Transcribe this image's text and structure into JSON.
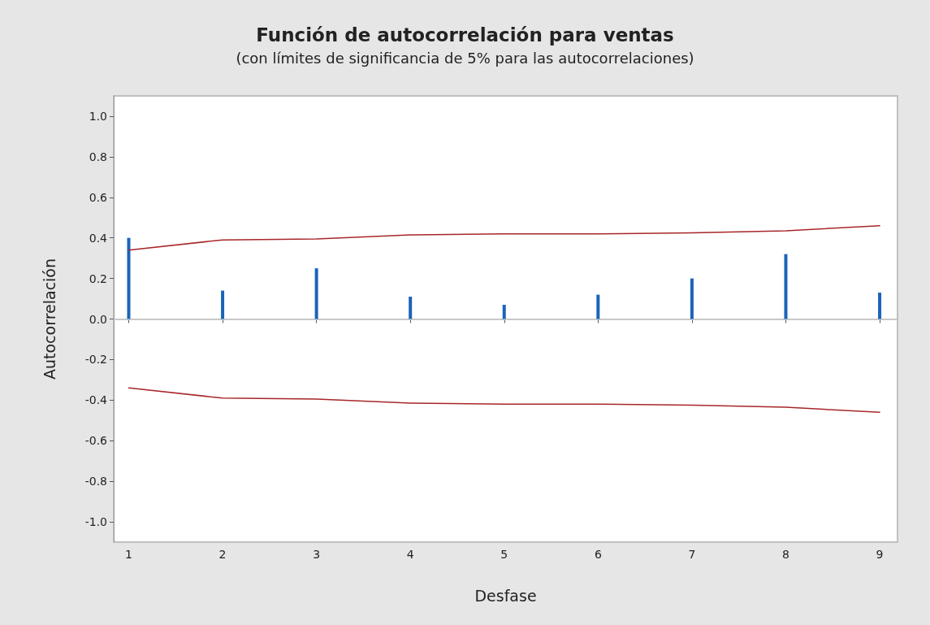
{
  "chart_data": {
    "type": "bar",
    "title": "Función de autocorrelación para ventas",
    "subtitle": "(con límites de significancia de 5% para las autocorrelaciones)",
    "xlabel": "Desfase",
    "ylabel": "Autocorrelación",
    "x": [
      1,
      2,
      3,
      4,
      5,
      6,
      7,
      8,
      9
    ],
    "series": [
      {
        "color": "#1b64b8",
        "values": [
          0.4,
          0.14,
          0.25,
          0.11,
          0.07,
          0.12,
          0.2,
          0.32,
          0.13
        ]
      },
      {
        "type": "line",
        "color": "#a8272a",
        "values": [
          0.34,
          0.39,
          0.395,
          0.415,
          0.42,
          0.42,
          0.425,
          0.435,
          0.46
        ]
      },
      {
        "type": "line",
        "color": "#a8272a",
        "values": [
          -0.34,
          -0.39,
          -0.395,
          -0.415,
          -0.42,
          -0.42,
          -0.425,
          -0.435,
          -0.46
        ]
      }
    ],
    "xlim": [
      0.84,
      9.19
    ],
    "xticks": [
      1,
      2,
      3,
      4,
      5,
      6,
      7,
      8,
      9
    ],
    "ylim": [
      -1.1,
      1.1
    ],
    "yticks": [
      {
        "value": -1,
        "label": "-1.0"
      },
      {
        "value": -0.8,
        "label": "-0.8"
      },
      {
        "value": -0.6,
        "label": "-0.6"
      },
      {
        "value": -0.4,
        "label": "-0.4"
      },
      {
        "value": -0.2,
        "label": "-0.2"
      },
      {
        "value": 0,
        "label": "0.0"
      },
      {
        "value": 0.2,
        "label": "0.2"
      },
      {
        "value": 0.4,
        "label": "0.4"
      },
      {
        "value": 0.6,
        "label": "0.6"
      },
      {
        "value": 0.8,
        "label": "0.8"
      },
      {
        "value": 1,
        "label": "1.0"
      }
    ],
    "ref_lines": [
      {
        "axis": "y",
        "value": 0,
        "color": "#c8c8c8"
      }
    ],
    "grid": false,
    "marker": "none",
    "line_style": "solid"
  }
}
